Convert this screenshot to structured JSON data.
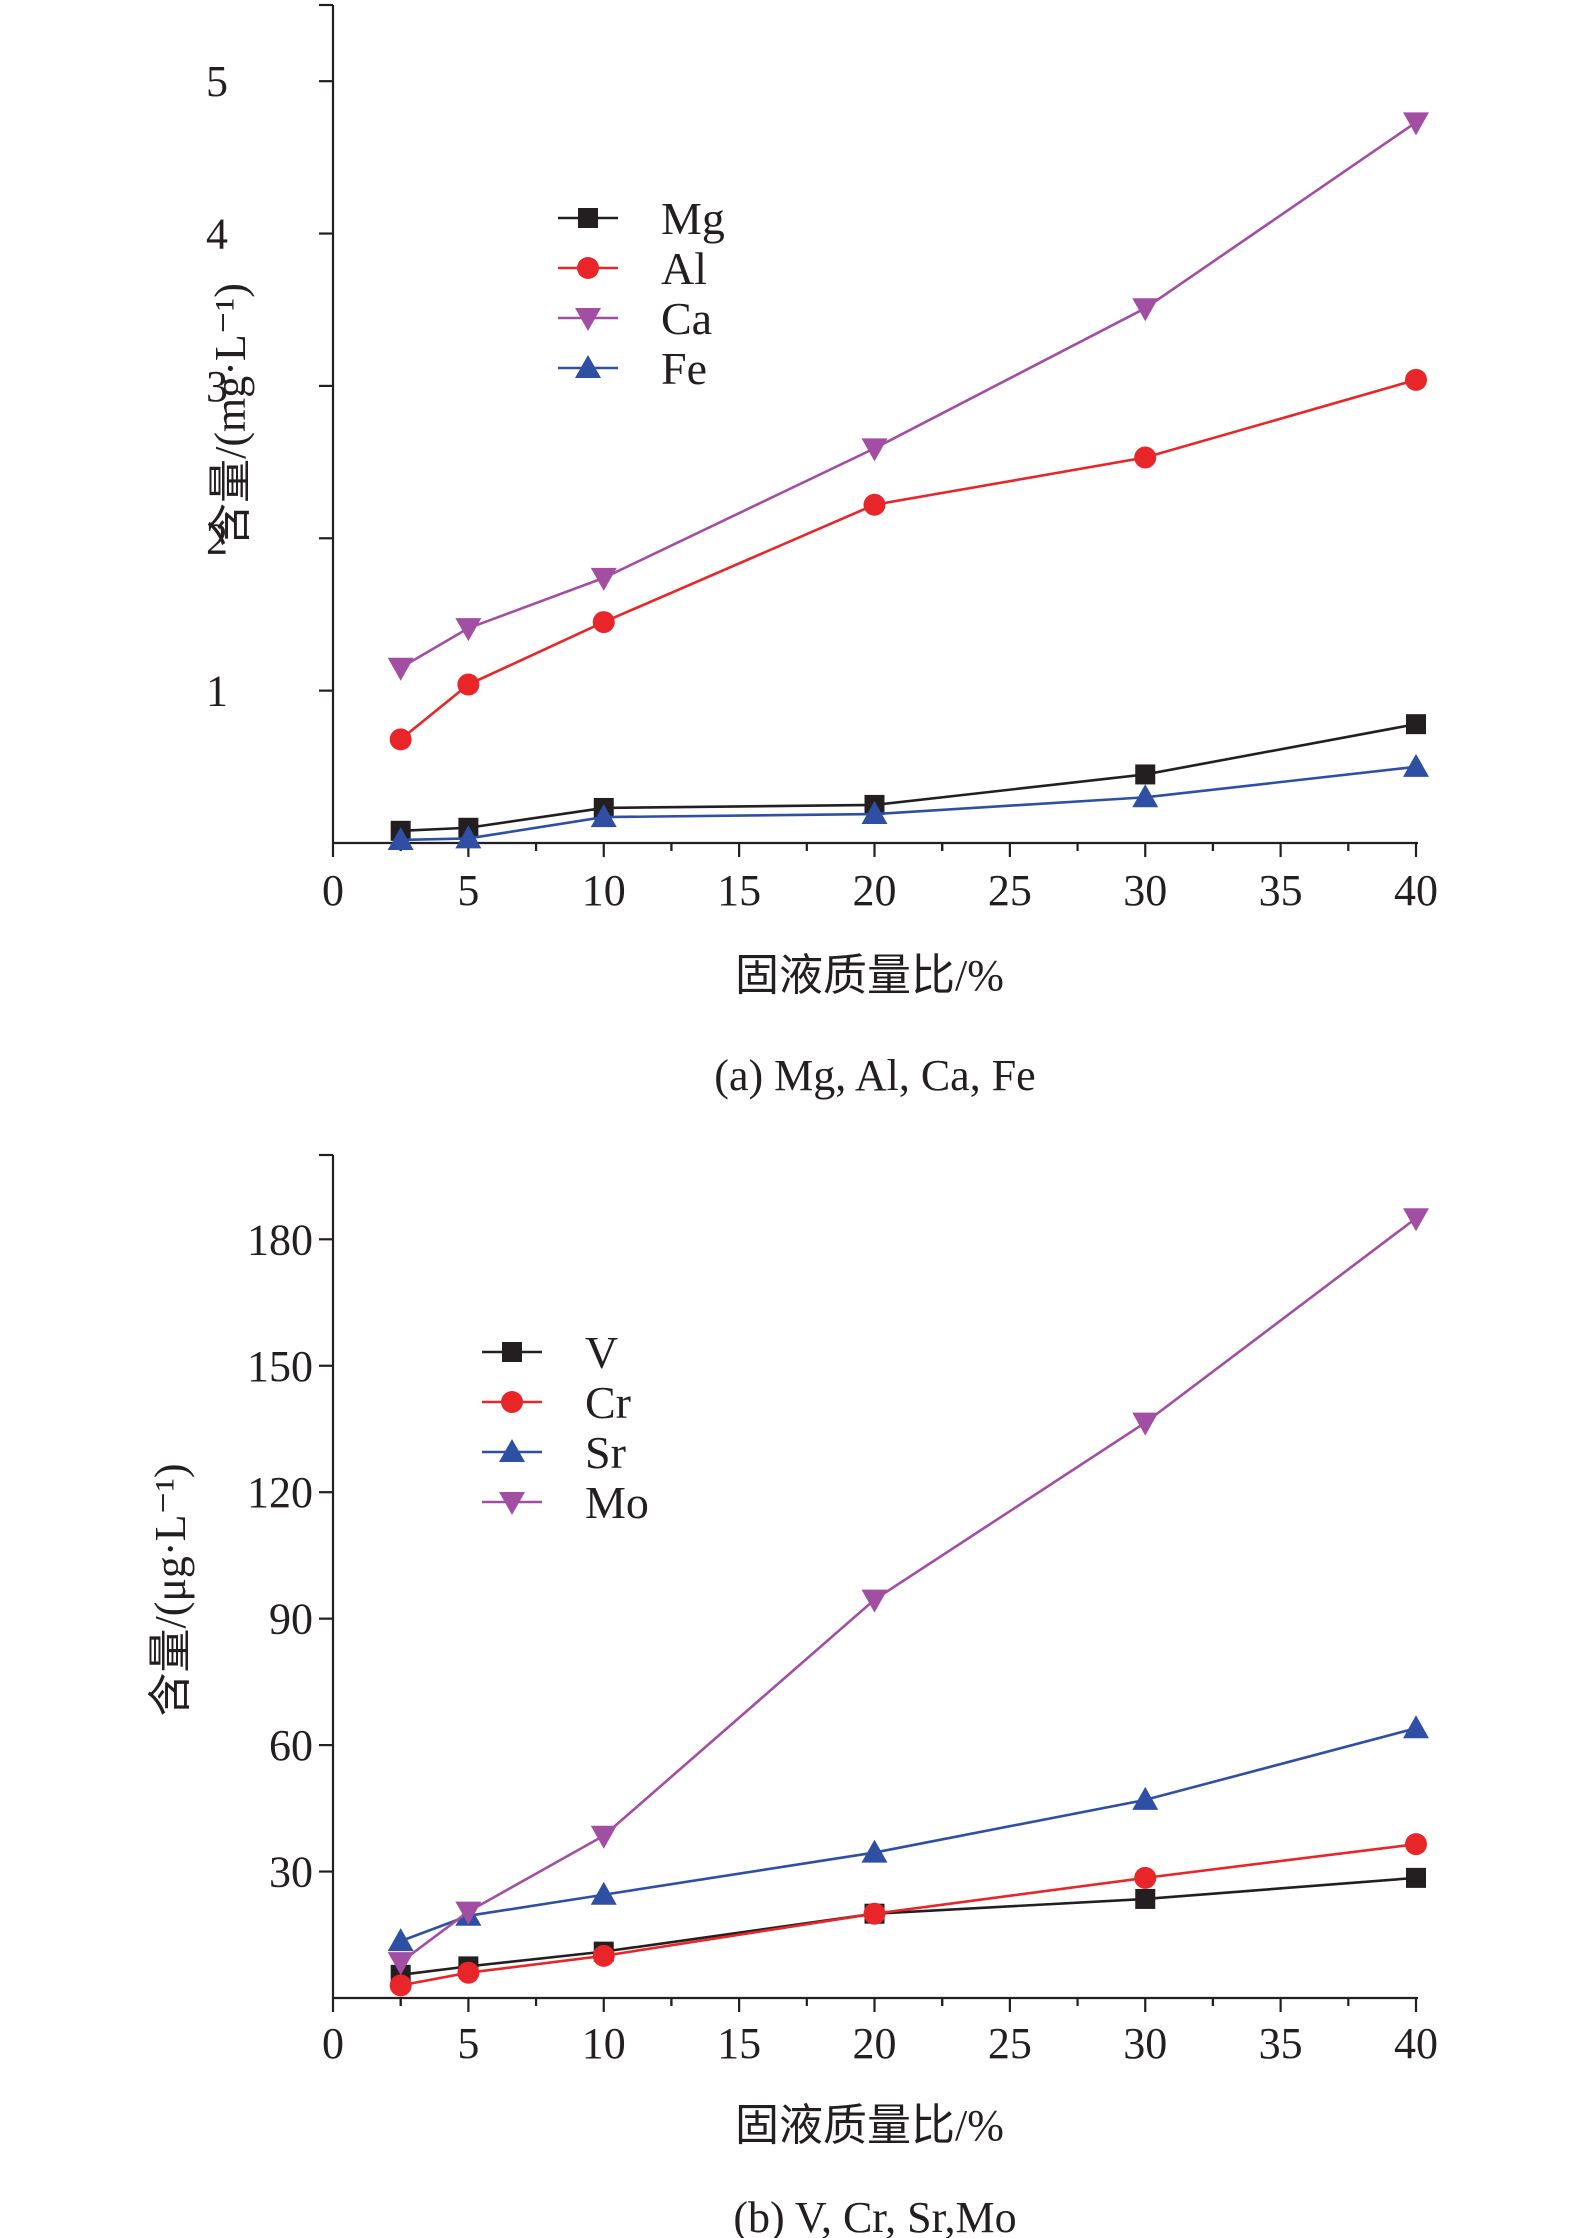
{
  "chart_data": [
    {
      "type": "line",
      "caption": "(a) Mg, Al, Ca, Fe",
      "xlabel": "固液质量比/%",
      "ylabel": "含量/(mg·L⁻¹)",
      "xlim": [
        0,
        40
      ],
      "ylim": [
        0,
        5.5
      ],
      "xticks": [
        0,
        5,
        10,
        15,
        20,
        25,
        30,
        35,
        40
      ],
      "yticks": [
        1,
        2,
        3,
        4,
        5
      ],
      "x": [
        2.5,
        5,
        10,
        20,
        30,
        40
      ],
      "legend_position": "top-left",
      "series": [
        {
          "name": "Mg",
          "marker": "square",
          "color": "#231f20",
          "values": [
            0.08,
            0.1,
            0.23,
            0.25,
            0.45,
            0.78
          ]
        },
        {
          "name": "Al",
          "marker": "circle",
          "color": "#e8262a",
          "values": [
            0.68,
            1.04,
            1.45,
            2.22,
            2.53,
            3.04
          ]
        },
        {
          "name": "Ca",
          "marker": "triangle-down",
          "color": "#a24ea3",
          "values": [
            1.15,
            1.41,
            1.74,
            2.59,
            3.51,
            4.73
          ]
        },
        {
          "name": "Fe",
          "marker": "triangle-up",
          "color": "#2e4fa3",
          "values": [
            0.02,
            0.03,
            0.17,
            0.19,
            0.3,
            0.5
          ]
        }
      ]
    },
    {
      "type": "line",
      "caption": "(b) V, Cr, Sr,Mo",
      "xlabel": "固液质量比/%",
      "ylabel": "含量/(μg·L⁻¹)",
      "xlim": [
        0,
        40
      ],
      "ylim": [
        0,
        200
      ],
      "xticks": [
        0,
        5,
        10,
        15,
        20,
        25,
        30,
        35,
        40
      ],
      "yticks": [
        30,
        60,
        90,
        120,
        150,
        180
      ],
      "x": [
        2.5,
        5,
        10,
        20,
        30,
        40
      ],
      "legend_position": "top-left",
      "series": [
        {
          "name": "V",
          "marker": "square",
          "color": "#231f20",
          "values": [
            5.5,
            7.5,
            11,
            20,
            23.5,
            28.5
          ]
        },
        {
          "name": "Cr",
          "marker": "circle",
          "color": "#e8262a",
          "values": [
            3,
            6,
            10,
            20,
            28.5,
            36.5
          ]
        },
        {
          "name": "Sr",
          "marker": "triangle-up",
          "color": "#2e4fa3",
          "values": [
            13.5,
            19.5,
            24.5,
            34.5,
            47,
            64
          ]
        },
        {
          "name": "Mo",
          "marker": "triangle-down",
          "color": "#a24ea3",
          "values": [
            8.5,
            20.5,
            38.5,
            94.5,
            136.5,
            185
          ]
        }
      ]
    }
  ]
}
